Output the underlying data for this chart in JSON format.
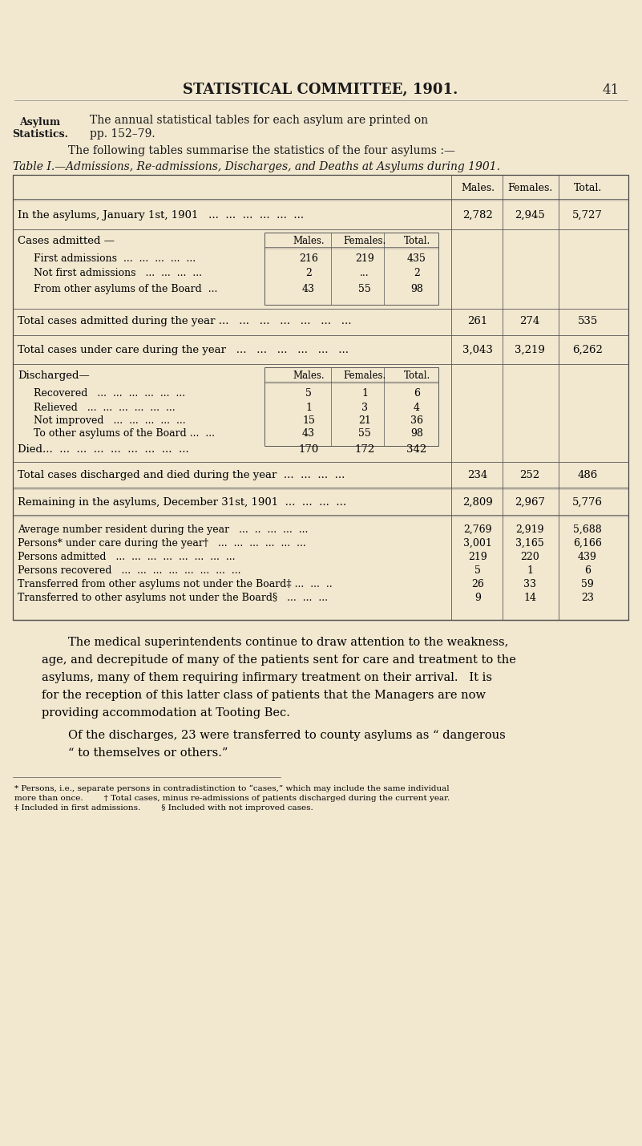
{
  "bg_color": "#f2e8d0",
  "page_title": "STATISTICAL COMMITTEE, 1901.",
  "page_number": "41",
  "margin_label1": "Asylum",
  "margin_label2": "Statistics.",
  "intro_line1": "The annual statistical tables for each asylum are printed on",
  "intro_line2": "pp. 152–79.",
  "intro_line3": "The following tables summarise the statistics of the four asylums :—",
  "table_title": "Table I.—Admissions, Re-admissions, Discharges, and Deaths at Asylums during 1901.",
  "row_jan": [
    "In the asylums, January 1st, 1901   ...  ...  ...  ...  ...  ...",
    "2,782",
    "2,945",
    "5,727"
  ],
  "cases_rows": [
    [
      "First admissions  ...  ...  ...  ...  ...",
      "216",
      "219",
      "435"
    ],
    [
      "Not first admissions   ...  ...  ...  ...",
      "2",
      "...",
      "2"
    ],
    [
      "From other asylums of the Board  ...",
      "43",
      "55",
      "98"
    ]
  ],
  "total_admitted": [
    "Total cases admitted during the year ...   ...   ...   ...   ...   ...   ...",
    "261",
    "274",
    "535"
  ],
  "total_under_care": [
    "Total cases under care during the year   ...   ...   ...   ...   ...   ...",
    "3,043",
    "3,219",
    "6,262"
  ],
  "discharge_rows": [
    [
      "Recovered   ...  ...  ...  ...  ...  ...",
      "5",
      "1",
      "6"
    ],
    [
      "Relieved   ...  ...  ...  ...  ...  ...",
      "1",
      "3",
      "4"
    ],
    [
      "Not improved   ...  ...  ...  ...  ...",
      "15",
      "21",
      "36"
    ],
    [
      "To other asylums of the Board ...  ...",
      "43",
      "55",
      "98"
    ]
  ],
  "died_row": [
    "Died...  ...  ...  ...  ...  ...  ...  ...  ...",
    "170",
    "172",
    "342"
  ],
  "total_disc_died": [
    "Total cases discharged and died during the year  ...  ...  ...  ...",
    "234",
    "252",
    "486"
  ],
  "remaining": [
    "Remaining in the asylums, December 31st, 1901  ...  ...  ...  ...",
    "2,809",
    "2,967",
    "5,776"
  ],
  "summary_rows": [
    [
      "Average number resident during the year   ...  ..  ...  ...  ...",
      "2,769",
      "2,919",
      "5,688"
    ],
    [
      "Persons* under care during the year†   ...  ...  ...  ...  ...  ...",
      "3,001",
      "3,165",
      "6,166"
    ],
    [
      "Persons admitted   ...  ...  ...  ...  ...  ...  ...  ...",
      "219",
      "220",
      "439"
    ],
    [
      "Persons recovered   ...  ...  ...  ...  ...  ...  ...  ...",
      "5",
      "1",
      "6"
    ],
    [
      "Transferred from other asylums not under the Board‡ ...  ...  ..",
      "26",
      "33",
      "59"
    ],
    [
      "Transferred to other asylums not under the Board§   ...  ...  ...",
      "9",
      "14",
      "23"
    ]
  ],
  "body_lines": [
    "The medical superintendents continue to draw attention to the weakness,",
    "age, and decrepitude of many of the patients sent for care and treatment to the",
    "asylums, many of them requiring infirmary treatment on their arrival.   It is",
    "for the reception of this latter class of patients that the Managers are now",
    "providing accommodation at Tooting Bec.",
    "Of the discharges, 23 were transferred to county asylums as “ dangerous",
    "“ to themselves or others.”"
  ],
  "footnote1": "* Persons, i.e., separate persons in contradistinction to “cases,” which may include the same individual",
  "footnote2": "more than once.        † Total cases, minus re-admissions of patients discharged during the current year.",
  "footnote3": "‡ Included in first admissions.        § Included with not improved cases."
}
